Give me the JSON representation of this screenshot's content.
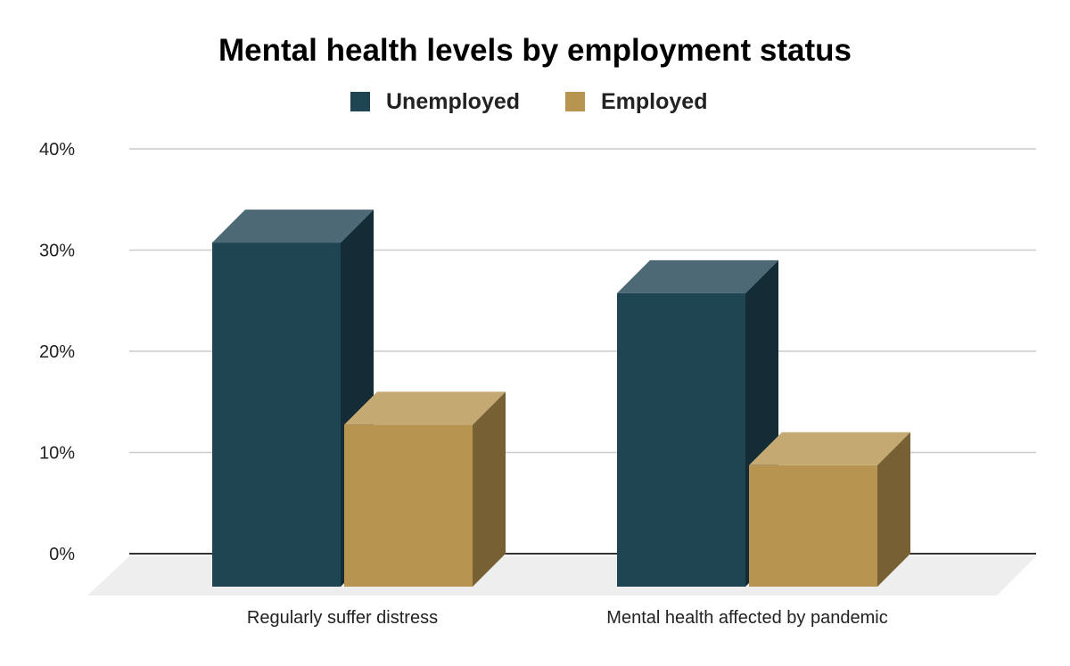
{
  "chart_data": {
    "type": "bar",
    "style": "3d-column",
    "title": "Mental health levels by employment status",
    "categories": [
      "Regularly suffer distress",
      "Mental health affected by pandemic"
    ],
    "series": [
      {
        "name": "Unemployed",
        "values": [
          34,
          29
        ],
        "color": "#1f4452"
      },
      {
        "name": "Employed",
        "values": [
          16,
          12
        ],
        "color": "#b79450"
      }
    ],
    "y_unit": "%",
    "ylim": [
      0,
      40
    ],
    "y_ticks": [
      "0%",
      "10%",
      "20%",
      "30%",
      "40%"
    ],
    "grid": true,
    "legend": "top"
  }
}
